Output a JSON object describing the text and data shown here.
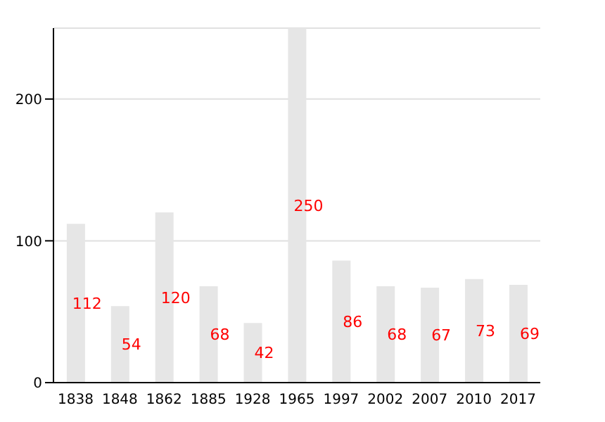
{
  "chart_data": {
    "type": "bar",
    "categories": [
      "1838",
      "1848",
      "1862",
      "1885",
      "1928",
      "1965",
      "1997",
      "2002",
      "2007",
      "2010",
      "2017"
    ],
    "values": [
      112,
      54,
      120,
      68,
      42,
      250,
      86,
      68,
      67,
      73,
      69
    ],
    "color": "#e6e6e6",
    "ylim": [
      0,
      250
    ],
    "yticks": [
      0,
      100,
      200
    ],
    "grid": "y",
    "data_labels": true
  }
}
